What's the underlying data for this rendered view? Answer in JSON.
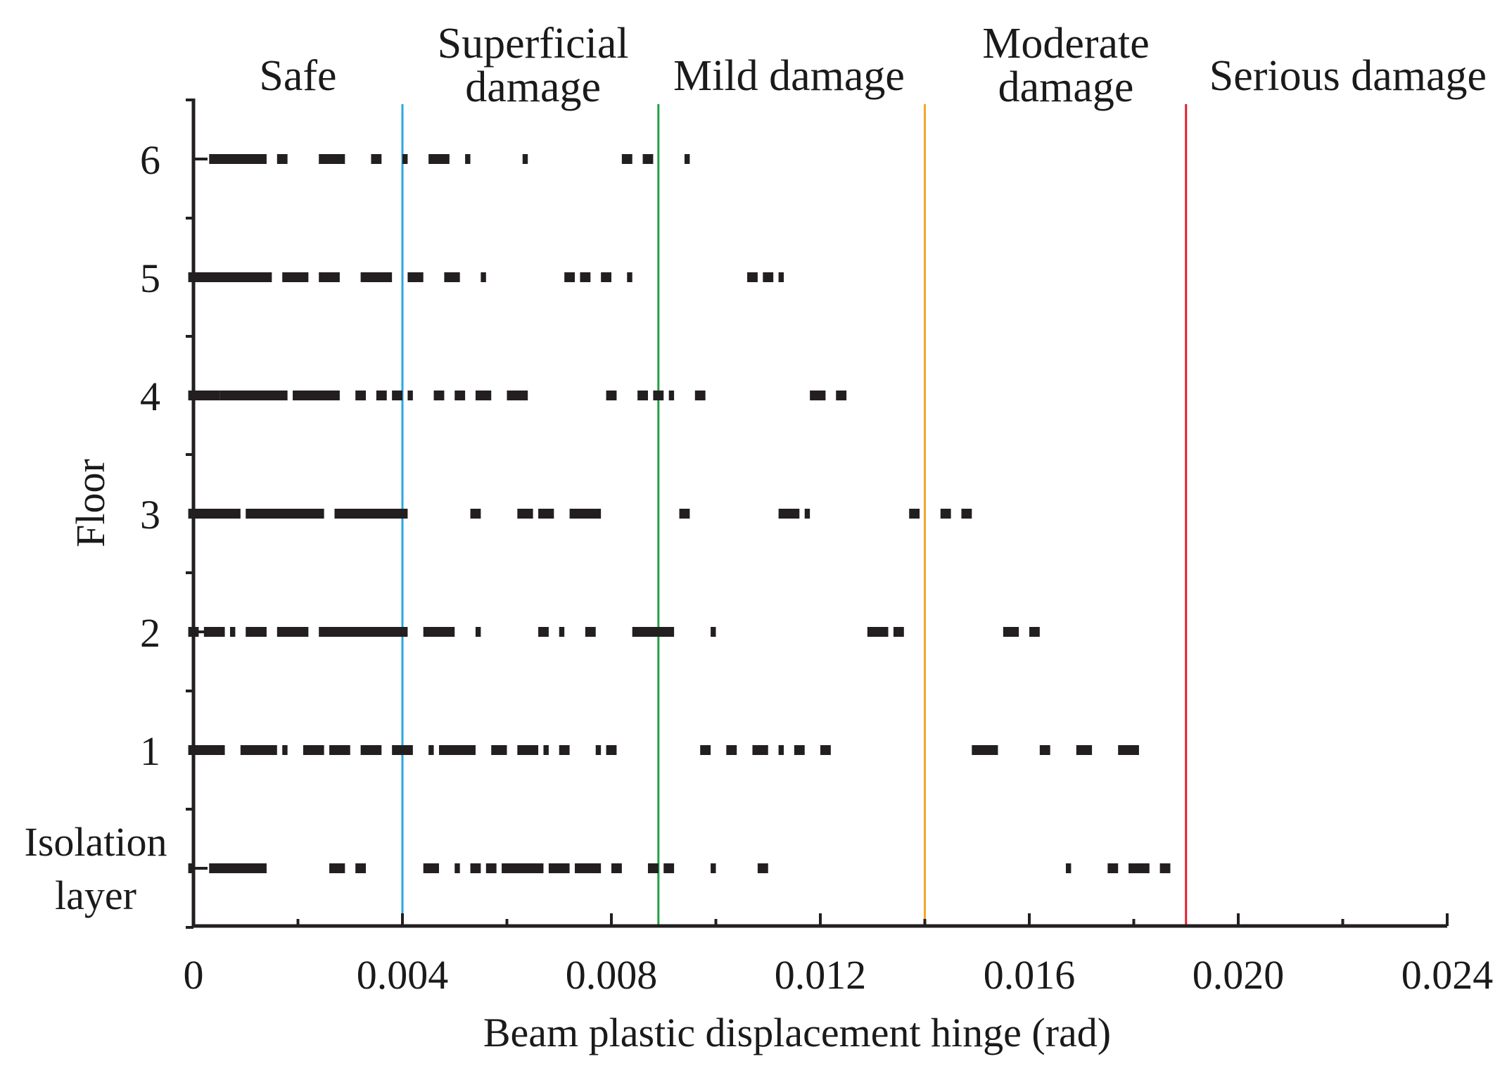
{
  "chart_data": {
    "type": "scatter",
    "xlabel": "Beam plastic displacement hinge (rad)",
    "ylabel": "Floor",
    "xlim": [
      0,
      0.024
    ],
    "ylim": [
      -0.5,
      6.5
    ],
    "x_ticks": [
      "0",
      "0.004",
      "0.008",
      "0.012",
      "0.016",
      "0.020",
      "0.024"
    ],
    "x_tick_values": [
      0,
      0.004,
      0.008,
      0.012,
      0.016,
      0.02,
      0.024
    ],
    "y_categories": [
      {
        "label": "Isolation layer",
        "lines": [
          "Isolation",
          "layer"
        ],
        "value": 0
      },
      {
        "label": "1",
        "lines": [
          "1"
        ],
        "value": 1
      },
      {
        "label": "2",
        "lines": [
          "2"
        ],
        "value": 2
      },
      {
        "label": "3",
        "lines": [
          "3"
        ],
        "value": 3
      },
      {
        "label": "4",
        "lines": [
          "4"
        ],
        "value": 4
      },
      {
        "label": "5",
        "lines": [
          "5"
        ],
        "value": 5
      },
      {
        "label": "6",
        "lines": [
          "6"
        ],
        "value": 6
      }
    ],
    "thresholds": [
      {
        "value": 0.004,
        "color": "#2aa7e0"
      },
      {
        "value": 0.0089,
        "color": "#22a045"
      },
      {
        "value": 0.014,
        "color": "#f2a52c"
      },
      {
        "value": 0.019,
        "color": "#e01f2f"
      }
    ],
    "zones": [
      {
        "label": "Safe",
        "lines": [
          "Safe"
        ],
        "center": 0.002
      },
      {
        "label": "Superficial damage",
        "lines": [
          "Superficial",
          "damage"
        ],
        "center": 0.0065
      },
      {
        "label": "Mild damage",
        "lines": [
          "Mild damage"
        ],
        "center": 0.0114
      },
      {
        "label": "Moderate damage",
        "lines": [
          "Moderate",
          "damage"
        ],
        "center": 0.0167
      },
      {
        "label": "Serious damage",
        "lines": [
          "Serious damage"
        ],
        "center": 0.0221
      }
    ],
    "series": [
      {
        "name": "6",
        "floor": 6,
        "segments": [
          [
            0.0003,
            0.0014
          ],
          [
            0.0016,
            0.0018
          ],
          [
            0.0024,
            0.0029
          ],
          [
            0.0034,
            0.0036
          ],
          [
            0.004,
            0.0041
          ],
          [
            0.0045,
            0.0049
          ],
          [
            0.0052,
            0.0053
          ],
          [
            0.0063,
            0.0064
          ],
          [
            0.0082,
            0.0084
          ],
          [
            0.0086,
            0.0088
          ],
          [
            0.0094,
            0.0095
          ]
        ]
      },
      {
        "name": "5",
        "floor": 5,
        "segments": [
          [
            -0.0001,
            0.0015
          ],
          [
            0.0017,
            0.0022
          ],
          [
            0.0024,
            0.0028
          ],
          [
            0.0032,
            0.0038
          ],
          [
            0.0041,
            0.0044
          ],
          [
            0.0048,
            0.0051
          ],
          [
            0.0055,
            0.0056
          ],
          [
            0.0071,
            0.0073
          ],
          [
            0.0074,
            0.0076
          ],
          [
            0.0078,
            0.008
          ],
          [
            0.0083,
            0.0084
          ],
          [
            0.0106,
            0.0108
          ],
          [
            0.0109,
            0.0111
          ],
          [
            0.0112,
            0.0113
          ]
        ]
      },
      {
        "name": "4",
        "floor": 4,
        "segments": [
          [
            -0.0001,
            0.0005
          ],
          [
            0.0005,
            0.0018
          ],
          [
            0.0019,
            0.0028
          ],
          [
            0.0031,
            0.0033
          ],
          [
            0.0035,
            0.0037
          ],
          [
            0.0038,
            0.004
          ],
          [
            0.0041,
            0.0042
          ],
          [
            0.0046,
            0.0048
          ],
          [
            0.005,
            0.0052
          ],
          [
            0.0054,
            0.0057
          ],
          [
            0.006,
            0.0064
          ],
          [
            0.0079,
            0.0081
          ],
          [
            0.0085,
            0.0087
          ],
          [
            0.0088,
            0.009
          ],
          [
            0.0091,
            0.0092
          ],
          [
            0.0096,
            0.0098
          ],
          [
            0.0118,
            0.0121
          ],
          [
            0.0123,
            0.0125
          ]
        ]
      },
      {
        "name": "3",
        "floor": 3,
        "segments": [
          [
            -0.0001,
            0.0009
          ],
          [
            0.001,
            0.0025
          ],
          [
            0.0027,
            0.0041
          ],
          [
            0.0053,
            0.0055
          ],
          [
            0.0062,
            0.0065
          ],
          [
            0.0066,
            0.0069
          ],
          [
            0.0072,
            0.0078
          ],
          [
            0.0093,
            0.0095
          ],
          [
            0.0112,
            0.0116
          ],
          [
            0.0117,
            0.0118
          ],
          [
            0.0137,
            0.0139
          ],
          [
            0.0143,
            0.0145
          ],
          [
            0.0147,
            0.0149
          ]
        ]
      },
      {
        "name": "2",
        "floor": 2,
        "segments": [
          [
            -0.0001,
            0.0001
          ],
          [
            0.0002,
            0.0006
          ],
          [
            0.0007,
            0.0008
          ],
          [
            0.001,
            0.0014
          ],
          [
            0.0016,
            0.0022
          ],
          [
            0.0024,
            0.0041
          ],
          [
            0.0044,
            0.005
          ],
          [
            0.0054,
            0.0055
          ],
          [
            0.0066,
            0.0068
          ],
          [
            0.007,
            0.0071
          ],
          [
            0.0075,
            0.0077
          ],
          [
            0.0084,
            0.0092
          ],
          [
            0.0099,
            0.01
          ],
          [
            0.0129,
            0.0133
          ],
          [
            0.0134,
            0.0136
          ],
          [
            0.0155,
            0.0158
          ],
          [
            0.016,
            0.0162
          ]
        ]
      },
      {
        "name": "1",
        "floor": 1,
        "segments": [
          [
            -0.0001,
            0.0006
          ],
          [
            0.0009,
            0.0016
          ],
          [
            0.0017,
            0.0018
          ],
          [
            0.0021,
            0.0025
          ],
          [
            0.0026,
            0.003
          ],
          [
            0.0032,
            0.0036
          ],
          [
            0.0038,
            0.0042
          ],
          [
            0.0045,
            0.0046
          ],
          [
            0.0047,
            0.0054
          ],
          [
            0.0057,
            0.006
          ],
          [
            0.0062,
            0.0066
          ],
          [
            0.0067,
            0.0068
          ],
          [
            0.007,
            0.0072
          ],
          [
            0.0077,
            0.0078
          ],
          [
            0.0079,
            0.0081
          ],
          [
            0.0097,
            0.0099
          ],
          [
            0.0102,
            0.0104
          ],
          [
            0.0107,
            0.011
          ],
          [
            0.0112,
            0.0113
          ],
          [
            0.0115,
            0.0117
          ],
          [
            0.012,
            0.0122
          ],
          [
            0.0149,
            0.0154
          ],
          [
            0.0162,
            0.0164
          ],
          [
            0.0169,
            0.0172
          ],
          [
            0.0177,
            0.0181
          ]
        ]
      },
      {
        "name": "Isolation layer",
        "floor": 0,
        "segments": [
          [
            -0.0001,
            0.0
          ],
          [
            0.0003,
            0.0014
          ],
          [
            0.0026,
            0.0029
          ],
          [
            0.0031,
            0.0033
          ],
          [
            0.0044,
            0.0047
          ],
          [
            0.005,
            0.0051
          ],
          [
            0.0053,
            0.0055
          ],
          [
            0.0056,
            0.0058
          ],
          [
            0.0059,
            0.0067
          ],
          [
            0.0068,
            0.0072
          ],
          [
            0.0073,
            0.0078
          ],
          [
            0.008,
            0.0082
          ],
          [
            0.0087,
            0.0089
          ],
          [
            0.009,
            0.0092
          ],
          [
            0.0099,
            0.01
          ],
          [
            0.0108,
            0.011
          ],
          [
            0.0167,
            0.0168
          ],
          [
            0.0175,
            0.0177
          ],
          [
            0.0179,
            0.0183
          ],
          [
            0.0185,
            0.0187
          ]
        ]
      }
    ]
  }
}
